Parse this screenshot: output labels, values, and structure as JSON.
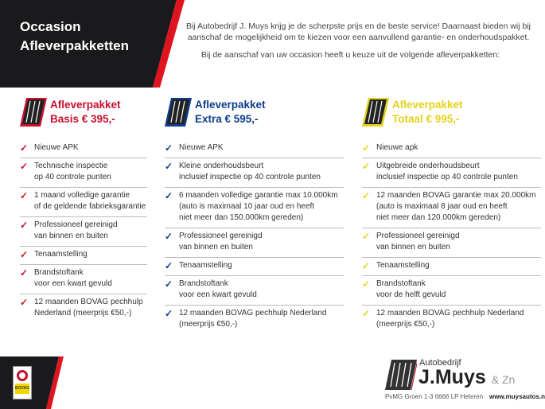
{
  "header": {
    "title_line1": "Occasion",
    "title_line2": "Afleverpakketten"
  },
  "intro": {
    "text1": "Bij Autobedrijf J. Muys krijg je de scherpste prijs en de beste service! Daarnaast bieden wij bij aanschaf de mogelijkheid om te kiezen voor een aanvullend garantie- en onderhoudspakket.",
    "text2": "Bij de aanschaf van uw occasion heeft u keuze uit de volgende afleverpakketten:"
  },
  "packages": [
    {
      "line1": "Afleverpakket",
      "line2": "Basis € 395,-",
      "color": "#c8102e",
      "items": [
        "Nieuwe APK",
        "Technische inspectie\nop 40 controle punten",
        "1 maand volledige garantie\nof de geldende fabrieksgarantie",
        "Professioneel gereinigd\nvan binnen en buiten",
        "Tenaamstelling",
        "Brandstoftank\nvoor een kwart gevuld",
        "12 maanden BOVAG pechhulp\nNederland (meerprijs €50,-)"
      ]
    },
    {
      "line1": "Afleverpakket",
      "line2": "Extra € 595,-",
      "color": "#0b3d8c",
      "items": [
        "Nieuwe APK",
        "Kleine onderhoudsbeurt\ninclusief inspectie op 40 controle punten",
        "6 maanden volledige garantie max 10.000km\n(auto is maximaal 10 jaar oud en heeft\nniet meer dan 150.000km gereden)",
        "Professioneel gereinigd\nvan binnen en buiten",
        "Tenaamstelling",
        "Brandstoftank\nvoor een kwart gevuld",
        "12 maanden BOVAG pechhulp Nederland\n(meerprijs €50,-)"
      ]
    },
    {
      "line1": "Afleverpakket",
      "line2": "Totaal € 995,-",
      "color": "#e3d21b",
      "items": [
        "Nieuwe apk",
        "Uitgebreide onderhoudsbeurt\ninclusief inspectie op 40 controle punten",
        "12 maanden BOVAG garantie max 20.000km\n(auto is maximaal 8 jaar oud en heeft\nniet meer dan 120.000km gereden)",
        "Professioneel gereinigd\nvan binnen en buiten",
        "Tenaamstelling",
        "Brandstoftank\nvoor de helft gevuld",
        "12 maanden BOVAG pechhulp Nederland\n(meerprijs €50,-)"
      ]
    }
  ],
  "check_icon": "✓",
  "footer": {
    "brand_small": "Autobedrijf",
    "brand_big": "J.Muys",
    "brand_suffix": "& Zn",
    "address": "PvMG Groen 1-3 6666 LP Heteren",
    "website": "www.muysautos.nl",
    "bovag_label": "BOVAG"
  }
}
